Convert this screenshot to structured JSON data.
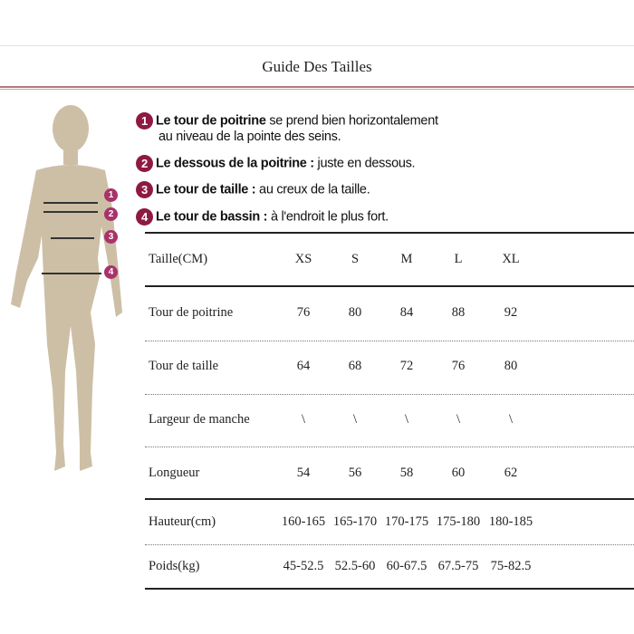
{
  "title": "Guide Des Tailles",
  "colors": {
    "badge": "#8e1a43",
    "figure": "#cdbfa6",
    "header_rule": "#b07a78"
  },
  "notes": [
    {
      "num": "1",
      "bold": "Le tour de poitrine",
      "text": " se prend bien horizontalement",
      "line2": "au niveau de la pointe des seins."
    },
    {
      "num": "2",
      "bold": "Le dessous de la poitrine :",
      "text": " juste en dessous."
    },
    {
      "num": "3",
      "bold": "Le tour de taille :",
      "text": " au creux de la taille."
    },
    {
      "num": "4",
      "bold": "Le tour de bassin :",
      "text": " à l'endroit le plus fort."
    }
  ],
  "figure_badges": [
    "1",
    "2",
    "3",
    "4"
  ],
  "table": {
    "header": {
      "label": "Taille(CM)",
      "values": [
        "XS",
        "S",
        "M",
        "L",
        "XL"
      ]
    },
    "rows": [
      {
        "label": "Tour de poitrine",
        "values": [
          "76",
          "80",
          "84",
          "88",
          "92"
        ]
      },
      {
        "label": "Tour de taille",
        "values": [
          "64",
          "68",
          "72",
          "76",
          "80"
        ]
      },
      {
        "label": "Largeur de manche",
        "values": [
          "\\",
          "\\",
          "\\",
          "\\",
          "\\"
        ]
      },
      {
        "label": "Longueur",
        "values": [
          "54",
          "56",
          "58",
          "60",
          "62"
        ]
      },
      {
        "label": "Hauteur(cm)",
        "values": [
          "160-165",
          "165-170",
          "170-175",
          "175-180",
          "180-185"
        ]
      },
      {
        "label": "Poids(kg)",
        "values": [
          "45-52.5",
          "52.5-60",
          "60-67.5",
          "67.5-75",
          "75-82.5"
        ]
      }
    ]
  }
}
